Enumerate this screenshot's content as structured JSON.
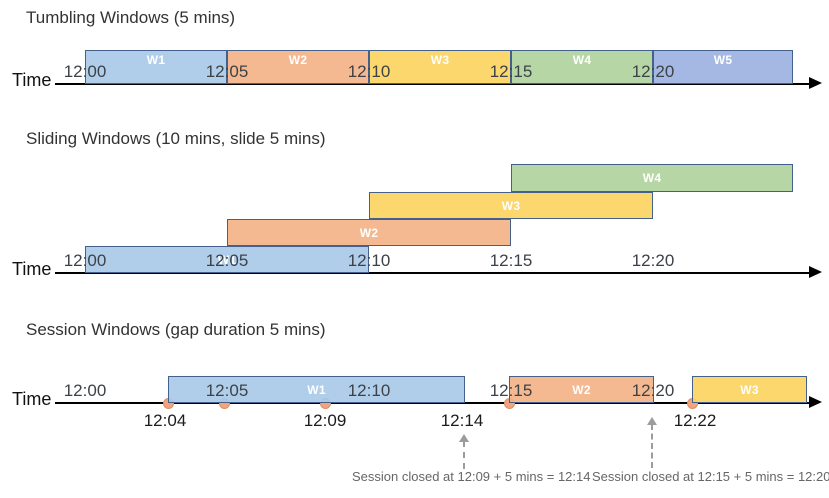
{
  "colors": {
    "blue": "#A7C9E8",
    "orange": "#F3B184",
    "yellow": "#FBD35E",
    "green": "#AFD19C",
    "blue2": "#9BB0E0",
    "bar_border": "#44618E",
    "event_dot": "#F2A47F",
    "event_dot_border": "#DD8F63",
    "axis": "#000000",
    "annotation_text": "#666666",
    "annotation_arrow": "#9c9c9c"
  },
  "sections": [
    {
      "id": "tumbling",
      "title": "Tumbling Windows (5 mins)",
      "time_label": "Time",
      "ticks": [
        "12:00",
        "12:05",
        "12:10",
        "12:15",
        "12:20"
      ],
      "windows": [
        {
          "label": "W1",
          "color": "blue",
          "start": "12:00",
          "end": "12:05"
        },
        {
          "label": "W2",
          "color": "orange",
          "start": "12:05",
          "end": "12:10"
        },
        {
          "label": "W3",
          "color": "yellow",
          "start": "12:10",
          "end": "12:15"
        },
        {
          "label": "W4",
          "color": "green",
          "start": "12:15",
          "end": "12:20"
        },
        {
          "label": "W5",
          "color": "blue2",
          "start": "12:20",
          "end": "12:25"
        }
      ]
    },
    {
      "id": "sliding",
      "title": "Sliding Windows (10 mins, slide 5 mins)",
      "time_label": "Time",
      "ticks": [
        "12:00",
        "12:05",
        "12:10",
        "12:15",
        "12:20"
      ],
      "windows": [
        {
          "label": "W1",
          "color": "blue",
          "start": "12:00",
          "end": "12:10"
        },
        {
          "label": "W2",
          "color": "orange",
          "start": "12:05",
          "end": "12:15"
        },
        {
          "label": "W3",
          "color": "yellow",
          "start": "12:10",
          "end": "12:20"
        },
        {
          "label": "W4",
          "color": "green",
          "start": "12:15",
          "end": "12:25"
        }
      ]
    },
    {
      "id": "session",
      "title": "Session Windows (gap duration 5 mins)",
      "time_label": "Time",
      "ticks": [
        "12:00",
        "12:05",
        "12:10",
        "12:15",
        "12:20"
      ],
      "windows": [
        {
          "label": "W1",
          "color": "blue",
          "start": "12:04",
          "end": "12:14"
        },
        {
          "label": "W2",
          "color": "orange",
          "start": "12:15",
          "end": "12:20"
        },
        {
          "label": "W3",
          "color": "yellow",
          "start": "12:22",
          "end": ""
        }
      ],
      "events": [
        "12:04",
        "12:06",
        "12:09",
        "12:15",
        "12:22"
      ],
      "event_labels": [
        {
          "text": "12:04"
        },
        {
          "text": "12:09"
        },
        {
          "text": "12:14"
        },
        {
          "text": "12:22"
        }
      ],
      "annotations": [
        {
          "text": "Session closed at 12:09 + 5 mins = 12:14"
        },
        {
          "text": "Session closed at 12:15 + 5 mins = 12:20"
        }
      ]
    }
  ]
}
